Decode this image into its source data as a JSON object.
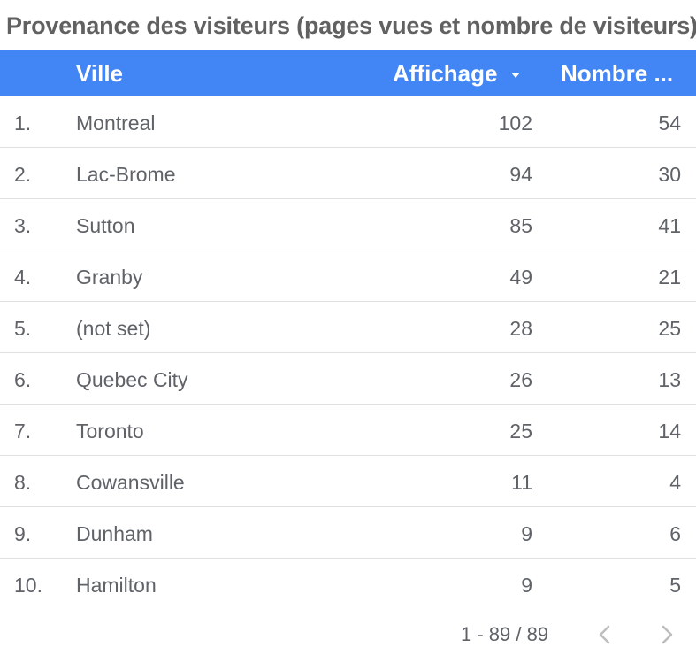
{
  "title": "Provenance des visiteurs (pages vues et nombre de visiteurs)",
  "columns": {
    "ville": "Ville",
    "affichage": "Affichage",
    "nombre": "Nombre ..."
  },
  "rows": [
    {
      "idx": "1.",
      "city": "Montreal",
      "affichage": "102",
      "nombre": "54"
    },
    {
      "idx": "2.",
      "city": "Lac-Brome",
      "affichage": "94",
      "nombre": "30"
    },
    {
      "idx": "3.",
      "city": "Sutton",
      "affichage": "85",
      "nombre": "41"
    },
    {
      "idx": "4.",
      "city": "Granby",
      "affichage": "49",
      "nombre": "21"
    },
    {
      "idx": "5.",
      "city": "(not set)",
      "affichage": "28",
      "nombre": "25"
    },
    {
      "idx": "6.",
      "city": "Quebec City",
      "affichage": "26",
      "nombre": "13"
    },
    {
      "idx": "7.",
      "city": "Toronto",
      "affichage": "25",
      "nombre": "14"
    },
    {
      "idx": "8.",
      "city": "Cowansville",
      "affichage": "11",
      "nombre": "4"
    },
    {
      "idx": "9.",
      "city": "Dunham",
      "affichage": "9",
      "nombre": "6"
    },
    {
      "idx": "10.",
      "city": "Hamilton",
      "affichage": "9",
      "nombre": "5"
    }
  ],
  "pagination": {
    "range": "1 - 89 / 89"
  },
  "icons": {
    "sort": "sort-descending-icon",
    "prev": "chevron-left-icon",
    "next": "chevron-right-icon"
  },
  "colors": {
    "header_bg": "#4285f4",
    "header_text": "#ffffff",
    "row_text": "#5f6368",
    "divider": "#e0e0e0"
  }
}
